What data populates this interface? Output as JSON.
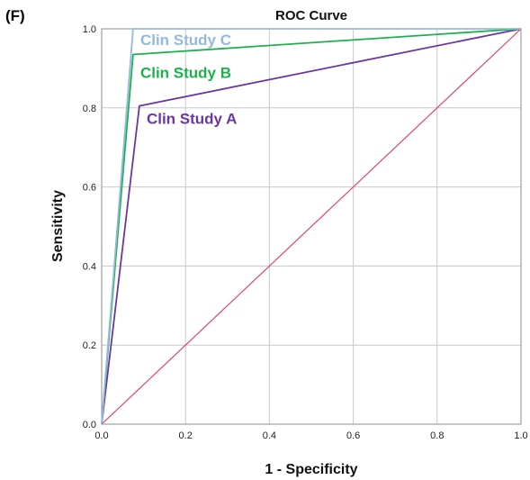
{
  "panel_label": "(F)",
  "chart_data": {
    "type": "line",
    "title": "ROC Curve",
    "xlabel": "1 - Specificity",
    "ylabel": "Sensitivity",
    "xlim": [
      0,
      1
    ],
    "ylim": [
      0,
      1
    ],
    "xticks": [
      "0.0",
      "0.2",
      "0.4",
      "0.6",
      "0.8",
      "1.0"
    ],
    "yticks": [
      "0.0",
      "0.2",
      "0.4",
      "0.6",
      "0.8",
      "1.0"
    ],
    "grid": true,
    "series": [
      {
        "name": "Clin Study C",
        "color": "#94b8e2",
        "x": [
          0,
          0.075,
          1
        ],
        "y": [
          0,
          1.0,
          1.0
        ]
      },
      {
        "name": "Clin Study B",
        "color": "#1db14d",
        "x": [
          0,
          0.075,
          1
        ],
        "y": [
          0,
          0.935,
          1.0
        ]
      },
      {
        "name": "Clin Study A",
        "color": "#6a36a0",
        "x": [
          0,
          0.09,
          1
        ],
        "y": [
          0,
          0.805,
          1.0
        ]
      },
      {
        "name": "",
        "color": "#e0456a",
        "x": [
          0,
          1
        ],
        "y": [
          0,
          1
        ]
      }
    ]
  }
}
